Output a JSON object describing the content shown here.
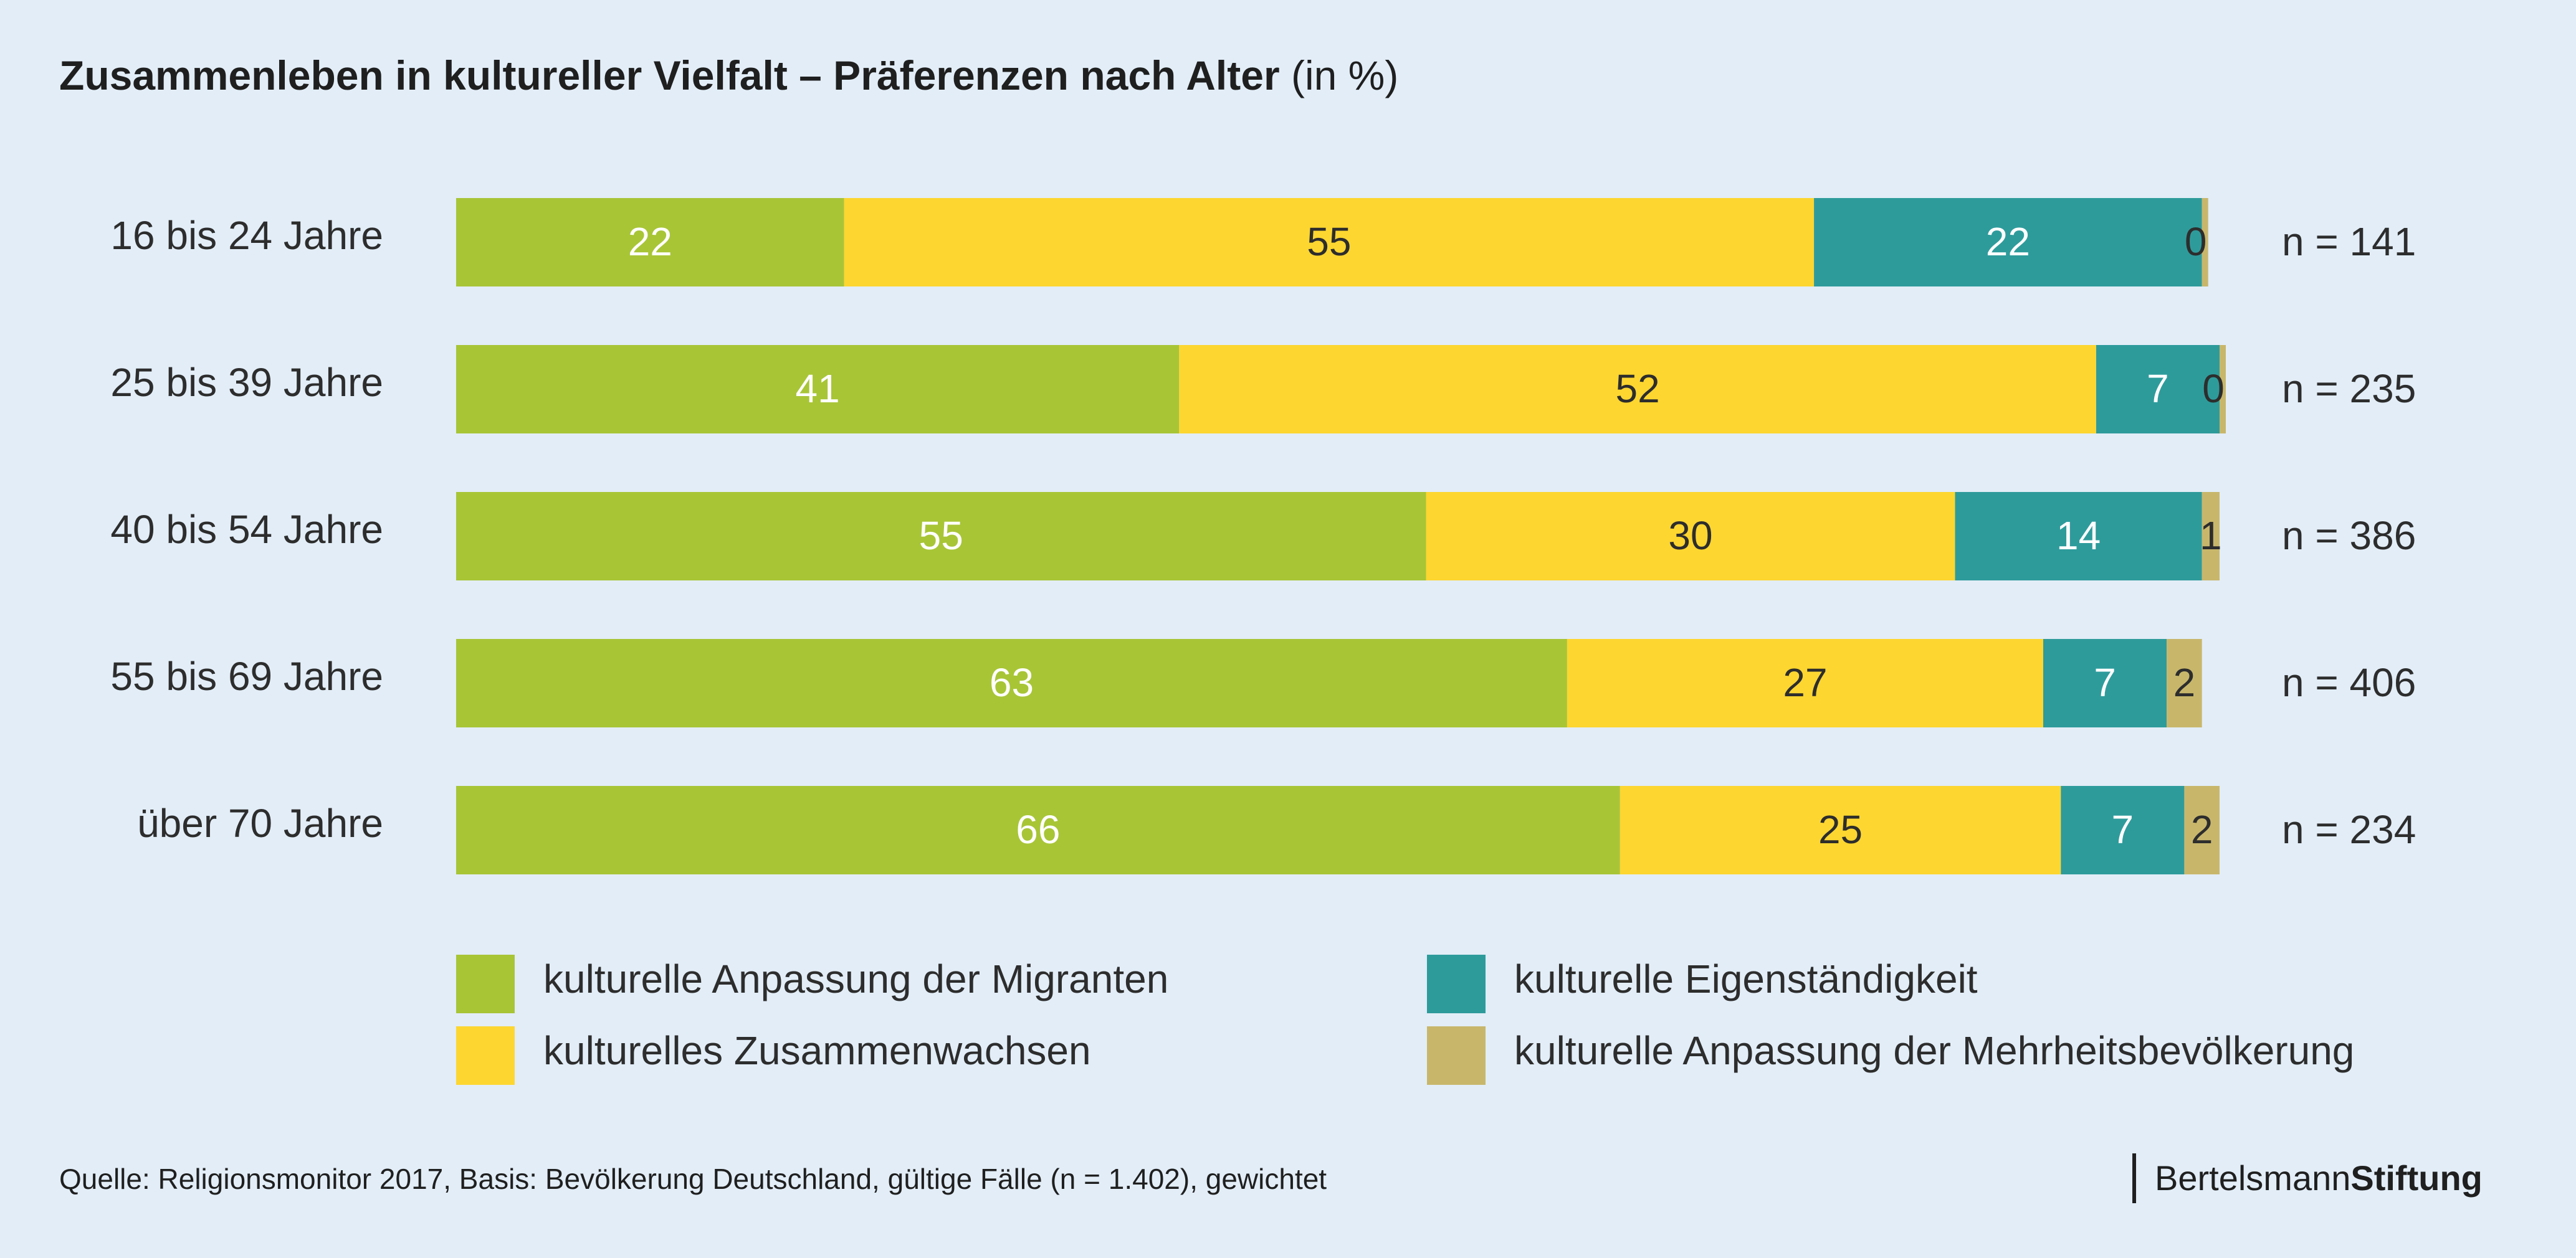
{
  "header": {
    "title": "Zusammenleben in kultureller Vielfalt – Präferenzen nach Alter",
    "unit": "(in %)"
  },
  "footer": {
    "source": "Quelle: Religionsmonitor 2017, Basis: Bevölkerung Deutschland, gültige Fälle (n = 1.402), gewichtet",
    "logo_light": "Bertelsmann",
    "logo_bold": "Stiftung"
  },
  "chart_data": {
    "type": "bar",
    "orientation": "horizontal",
    "stacked": true,
    "title": "Zusammenleben in kultureller Vielfalt – Präferenzen nach Alter",
    "unit": "(in %)",
    "xlim": [
      0,
      100
    ],
    "grid": false,
    "legend_position": "bottom",
    "categories": [
      "16 bis 24 Jahre",
      "25 bis 39 Jahre",
      "40 bis 54 Jahre",
      "55 bis 69 Jahre",
      "über 70 Jahre"
    ],
    "sample_sizes": [
      "n = 141",
      "n = 235",
      "n = 386",
      "n = 406",
      "n = 234"
    ],
    "series": [
      {
        "name": "kulturelle Anpassung der Migranten",
        "color": "#a8c536",
        "label_color": "#ffffff",
        "values": [
          22,
          41,
          55,
          63,
          66
        ]
      },
      {
        "name": "kulturelles Zusammenwachsen",
        "color": "#fdd630",
        "label_color": "#2d2d2d",
        "values": [
          55,
          52,
          30,
          27,
          25
        ]
      },
      {
        "name": "kulturelle Eigenständigkeit",
        "color": "#2e9b9b",
        "label_color": "#ffffff",
        "values": [
          22,
          7,
          14,
          7,
          7
        ]
      },
      {
        "name": "kulturelle Anpassung der Mehrheitsbevölkerung",
        "color": "#c8b76b",
        "label_color": "#2d2d2d",
        "values": [
          0,
          0,
          1,
          2,
          2
        ]
      }
    ]
  }
}
